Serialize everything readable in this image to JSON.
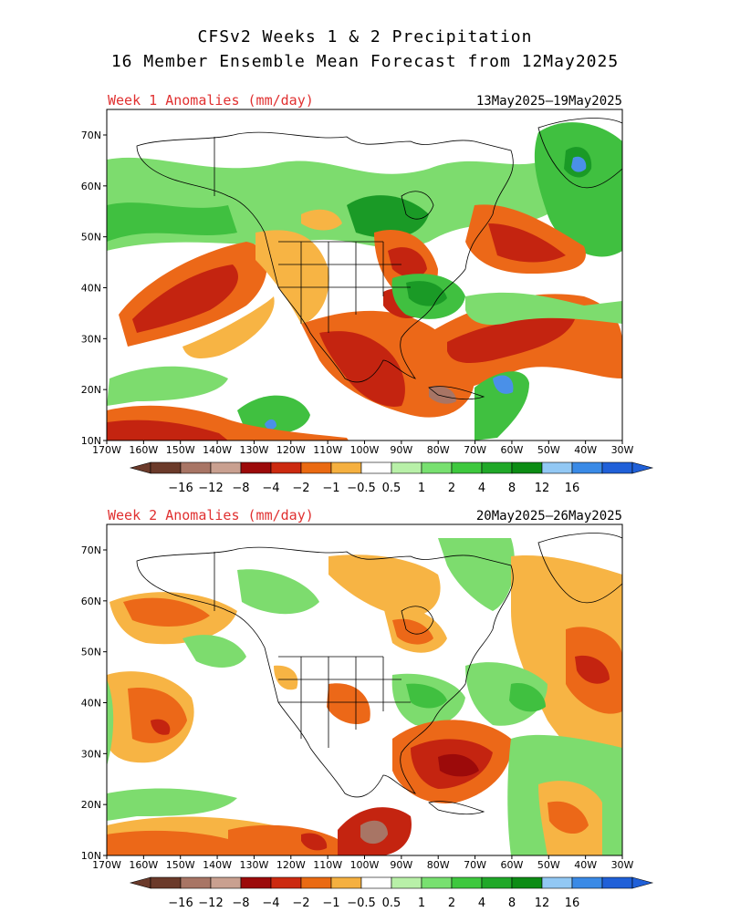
{
  "title": {
    "line1": "CFSv2 Weeks 1 & 2 Precipitation",
    "line2": "16 Member Ensemble Mean Forecast from 12May2025"
  },
  "panels": [
    {
      "label": "Week 1 Anomalies (mm/day)",
      "dates": "13May2025–19May2025"
    },
    {
      "label": "Week 2 Anomalies (mm/day)",
      "dates": "20May2025–26May2025"
    }
  ],
  "axes": {
    "lat_labels": [
      "70N",
      "60N",
      "50N",
      "40N",
      "30N",
      "20N",
      "10N"
    ],
    "lon_labels": [
      "170W",
      "160W",
      "150W",
      "140W",
      "130W",
      "120W",
      "110W",
      "100W",
      "90W",
      "80W",
      "70W",
      "60W",
      "50W",
      "40W",
      "30W"
    ]
  },
  "colorbar": {
    "labels": [
      "−16",
      "−12",
      "−8",
      "−4",
      "−2",
      "−1",
      "−0.5",
      "0.5",
      "1",
      "2",
      "4",
      "8",
      "12",
      "16"
    ],
    "colors": [
      "#6b3a2a",
      "#a87565",
      "#c9a090",
      "#9c0a0a",
      "#cc2a10",
      "#ea6a12",
      "#f5b040",
      "#ffffff",
      "#b8f0a8",
      "#78e070",
      "#3ec83e",
      "#20a828",
      "#0c8c14",
      "#92c8f4",
      "#3a8ae6",
      "#2060d8"
    ]
  },
  "colors": {
    "dry_strong": "#c42410",
    "dry_moderate": "#ec6818",
    "dry_light": "#f7b444",
    "wet_light": "#7ddc6e",
    "wet_moderate": "#40c040",
    "wet_strong": "#1a9a26",
    "wet_very_strong": "#4a90e8",
    "title_red": "#e03030"
  }
}
